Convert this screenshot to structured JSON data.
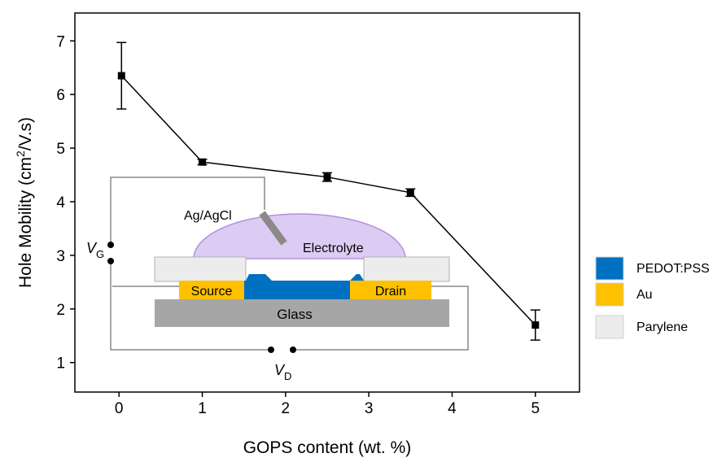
{
  "chart_data": {
    "type": "line",
    "xlabel": "GOPS content (wt. %)",
    "ylabel": {
      "before": "Hole Mobility (cm",
      "sup": "2",
      "after": "/V.s)"
    },
    "x": [
      0.03,
      1,
      2.5,
      3.5,
      5
    ],
    "series": [
      {
        "color": "#000000",
        "values": [
          6.35,
          4.74,
          4.46,
          4.17,
          1.7
        ],
        "errors": [
          0.62,
          0.05,
          0.08,
          0.07,
          0.28
        ]
      }
    ],
    "xlim": [
      -0.53,
      5.53
    ],
    "ylim": [
      0.45,
      7.52
    ],
    "xticks": [
      0,
      1,
      2,
      3,
      4,
      5
    ],
    "yticks": [
      1,
      2,
      3,
      4,
      5,
      6,
      7
    ],
    "inset": {
      "ag_agcl": "Ag/AgCl",
      "electrolyte": "Electrolyte",
      "source": "Source",
      "drain": "Drain",
      "glass": "Glass",
      "vg": {
        "main": "V",
        "sub": "G"
      },
      "vd": {
        "main": "V",
        "sub": "D"
      }
    },
    "legend_items": [
      {
        "name": "PEDOT:PSS",
        "color": "#0070c0"
      },
      {
        "name": "Au",
        "color": "#ffc000"
      },
      {
        "name": "Parylene",
        "color": "#ececec"
      }
    ]
  }
}
